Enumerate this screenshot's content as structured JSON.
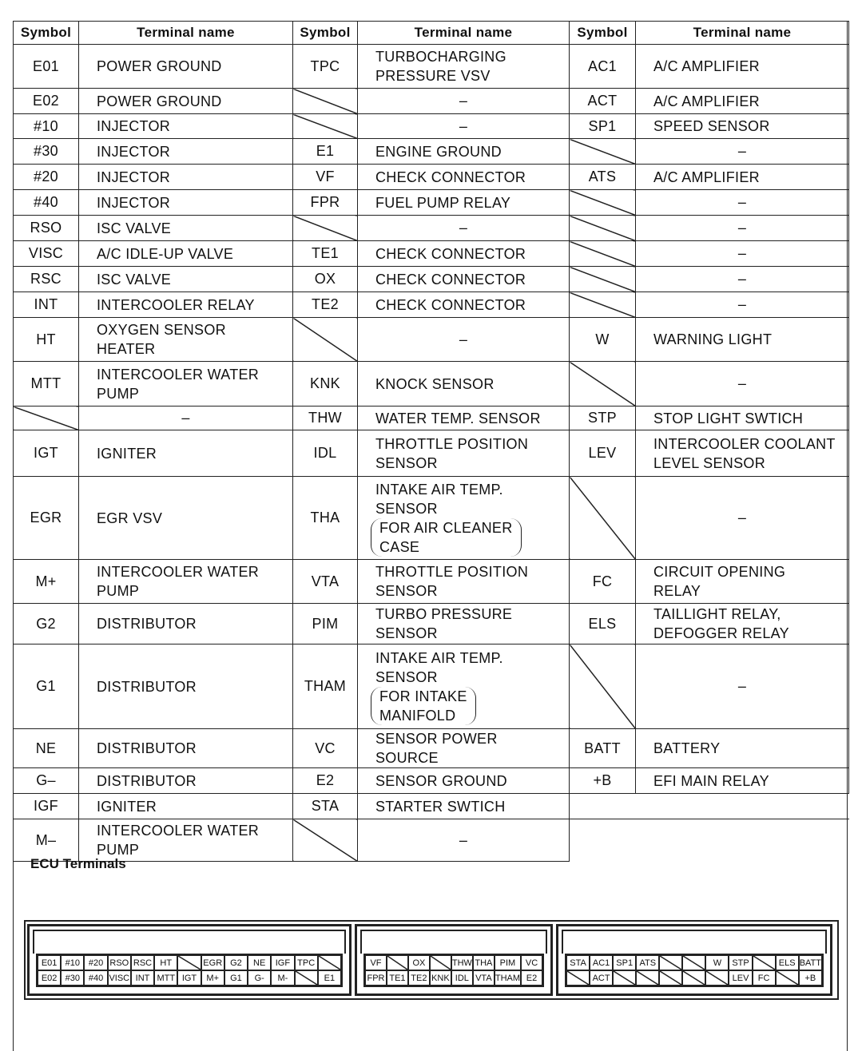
{
  "headers": [
    "Symbol",
    "Terminal name",
    "Symbol",
    "Terminal name",
    "Symbol",
    "Terminal name"
  ],
  "rows": [
    {
      "h": 55,
      "c": [
        [
          "E01",
          "POWER GROUND"
        ],
        [
          "TPC",
          "TURBOCHARGING\nPRESSURE VSV"
        ],
        [
          "AC1",
          "A/C AMPLIFIER"
        ]
      ]
    },
    {
      "h": 32,
      "c": [
        [
          "E02",
          "POWER GROUND"
        ],
        [
          null,
          "–"
        ],
        [
          "ACT",
          "A/C AMPLIFIER"
        ]
      ]
    },
    {
      "h": 31,
      "c": [
        [
          "#10",
          "INJECTOR"
        ],
        [
          null,
          "–"
        ],
        [
          "SP1",
          "SPEED SENSOR"
        ]
      ]
    },
    {
      "h": 32,
      "c": [
        [
          "#30",
          "INJECTOR"
        ],
        [
          "E1",
          "ENGINE GROUND"
        ],
        [
          null,
          "–"
        ]
      ]
    },
    {
      "h": 32,
      "c": [
        [
          "#20",
          "INJECTOR"
        ],
        [
          "VF",
          "CHECK CONNECTOR"
        ],
        [
          "ATS",
          "A/C AMPLIFIER"
        ]
      ]
    },
    {
      "h": 32,
      "c": [
        [
          "#40",
          "INJECTOR"
        ],
        [
          "FPR",
          "FUEL PUMP RELAY"
        ],
        [
          null,
          "–"
        ]
      ]
    },
    {
      "h": 32,
      "c": [
        [
          "RSO",
          "ISC VALVE"
        ],
        [
          null,
          "–"
        ],
        [
          null,
          "–"
        ]
      ]
    },
    {
      "h": 32,
      "c": [
        [
          "VISC",
          "A/C IDLE-UP VALVE"
        ],
        [
          "TE1",
          "CHECK CONNECTOR"
        ],
        [
          null,
          "–"
        ]
      ]
    },
    {
      "h": 32,
      "c": [
        [
          "RSC",
          "ISC VALVE"
        ],
        [
          "OX",
          "CHECK CONNECTOR"
        ],
        [
          null,
          "–"
        ]
      ]
    },
    {
      "h": 32,
      "c": [
        [
          "INT",
          "INTERCOOLER RELAY"
        ],
        [
          "TE2",
          "CHECK CONNECTOR"
        ],
        [
          null,
          "–"
        ]
      ]
    },
    {
      "h": 55,
      "c": [
        [
          "HT",
          "OXYGEN SENSOR\nHEATER"
        ],
        [
          null,
          "–"
        ],
        [
          "W",
          "WARNING LIGHT"
        ]
      ]
    },
    {
      "h": 56,
      "c": [
        [
          "MTT",
          "INTERCOOLER WATER\nPUMP"
        ],
        [
          "KNK",
          "KNOCK SENSOR"
        ],
        [
          null,
          "–"
        ]
      ]
    },
    {
      "h": 30,
      "c": [
        [
          null,
          "–"
        ],
        [
          "THW",
          "WATER TEMP. SENSOR"
        ],
        [
          "STP",
          "STOP LIGHT SWTICH"
        ]
      ]
    },
    {
      "h": 58,
      "c": [
        [
          "IGT",
          "IGNITER"
        ],
        [
          "IDL",
          "THROTTLE POSITION\nSENSOR"
        ],
        [
          "LEV",
          "INTERCOOLER COOLANT\nLEVEL SENSOR"
        ]
      ]
    },
    {
      "h": 104,
      "c": [
        [
          "EGR",
          "EGR VSV"
        ],
        [
          "THA",
          "INTAKE AIR TEMP.\nSENSOR",
          "FOR AIR CLEANER\nCASE"
        ],
        [
          null,
          "–"
        ]
      ]
    },
    {
      "h": 55,
      "c": [
        [
          "M+",
          "INTERCOOLER WATER\nPUMP"
        ],
        [
          "VTA",
          "THROTTLE POSITION\nSENSOR"
        ],
        [
          "FC",
          "CIRCUIT OPENING\nRELAY"
        ]
      ]
    },
    {
      "h": 51,
      "c": [
        [
          "G2",
          "DISTRIBUTOR"
        ],
        [
          "PIM",
          "TURBO PRESSURE\nSENSOR"
        ],
        [
          "ELS",
          "TAILLIGHT RELAY,\nDEFOGGER RELAY"
        ]
      ]
    },
    {
      "h": 106,
      "c": [
        [
          "G1",
          "DISTRIBUTOR"
        ],
        [
          "THAM",
          "INTAKE AIR TEMP.\nSENSOR",
          "FOR INTAKE\nMANIFOLD"
        ],
        [
          null,
          "–"
        ]
      ]
    },
    {
      "h": 31,
      "c": [
        [
          "NE",
          "DISTRIBUTOR"
        ],
        [
          "VC",
          "SENSOR POWER SOURCE"
        ],
        [
          "BATT",
          "BATTERY"
        ]
      ]
    },
    {
      "h": 32,
      "c": [
        [
          "G–",
          "DISTRIBUTOR"
        ],
        [
          "E2",
          "SENSOR GROUND"
        ],
        [
          "+B",
          "EFI MAIN RELAY"
        ]
      ]
    },
    {
      "h": 32,
      "c": [
        [
          "IGF",
          "IGNITER"
        ],
        [
          "STA",
          "STARTER SWTICH"
        ]
      ]
    },
    {
      "h": 53,
      "c": [
        [
          "M–",
          "INTERCOOLER WATER\nPUMP"
        ],
        [
          null,
          "–"
        ]
      ]
    }
  ],
  "ecu_label": "ECU Terminals",
  "connectors": [
    {
      "top": [
        "E01",
        "#10",
        "#20",
        "RSO",
        "RSC",
        "HT",
        null,
        "EGR",
        "G2",
        "NE",
        "IGF",
        "TPC",
        null
      ],
      "bottom": [
        "E02",
        "#30",
        "#40",
        "VISC",
        "INT",
        "MTT",
        "IGT",
        "M+",
        "G1",
        "G-",
        "M-",
        null,
        "E1"
      ]
    },
    {
      "top": [
        "VF",
        null,
        "OX",
        null,
        "THW",
        "THA",
        "PIM",
        "VC"
      ],
      "bottom": [
        "FPR",
        "TE1",
        "TE2",
        "KNK",
        "IDL",
        "VTA",
        "THAM",
        "E2"
      ]
    },
    {
      "top": [
        "STA",
        "AC1",
        "SP1",
        "ATS",
        null,
        null,
        "W",
        "STP",
        null,
        "ELS",
        "BATT"
      ],
      "bottom": [
        null,
        "ACT",
        null,
        null,
        null,
        null,
        null,
        "LEV",
        "FC",
        null,
        "+B"
      ]
    }
  ]
}
